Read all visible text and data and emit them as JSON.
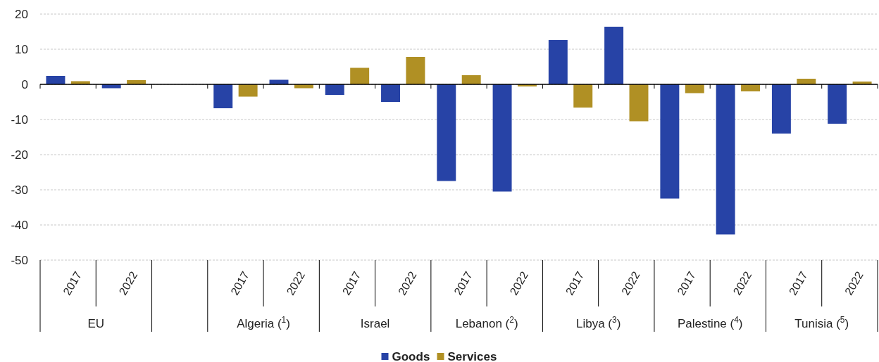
{
  "chart_data": {
    "type": "bar",
    "categories": [
      "2017",
      "2022",
      null,
      "2017",
      "2022",
      "2017",
      "2022",
      "2017",
      "2022",
      "2017",
      "2022",
      "2017",
      "2022",
      "2017",
      "2022"
    ],
    "series": [
      {
        "name": "Goods",
        "color": "#2743a6",
        "values": [
          2.4,
          -1.1,
          null,
          -6.8,
          1.3,
          -3.0,
          -5.0,
          -27.5,
          -30.5,
          12.6,
          16.4,
          -32.5,
          -42.7,
          -14.0,
          -11.2
        ]
      },
      {
        "name": "Services",
        "color": "#b09024",
        "values": [
          0.9,
          1.2,
          null,
          -3.5,
          -1.1,
          4.7,
          7.8,
          2.6,
          -0.6,
          -6.6,
          -10.5,
          -2.5,
          -2.0,
          1.6,
          0.8
        ]
      }
    ],
    "annotations": [
      "EU",
      "Algeria ($^{1}$)",
      "Israel",
      "Lebanon ($^{2}$)",
      "Libya ($^{3}$)",
      "Palestine ($^{4}$)",
      "Tunisia ($^{5}$)"
    ],
    "ylim": [
      -50,
      20
    ],
    "yticks": [
      -50,
      -40,
      -30,
      -20,
      -10,
      0,
      10,
      20
    ],
    "grid": "y",
    "legend": "bottom"
  }
}
